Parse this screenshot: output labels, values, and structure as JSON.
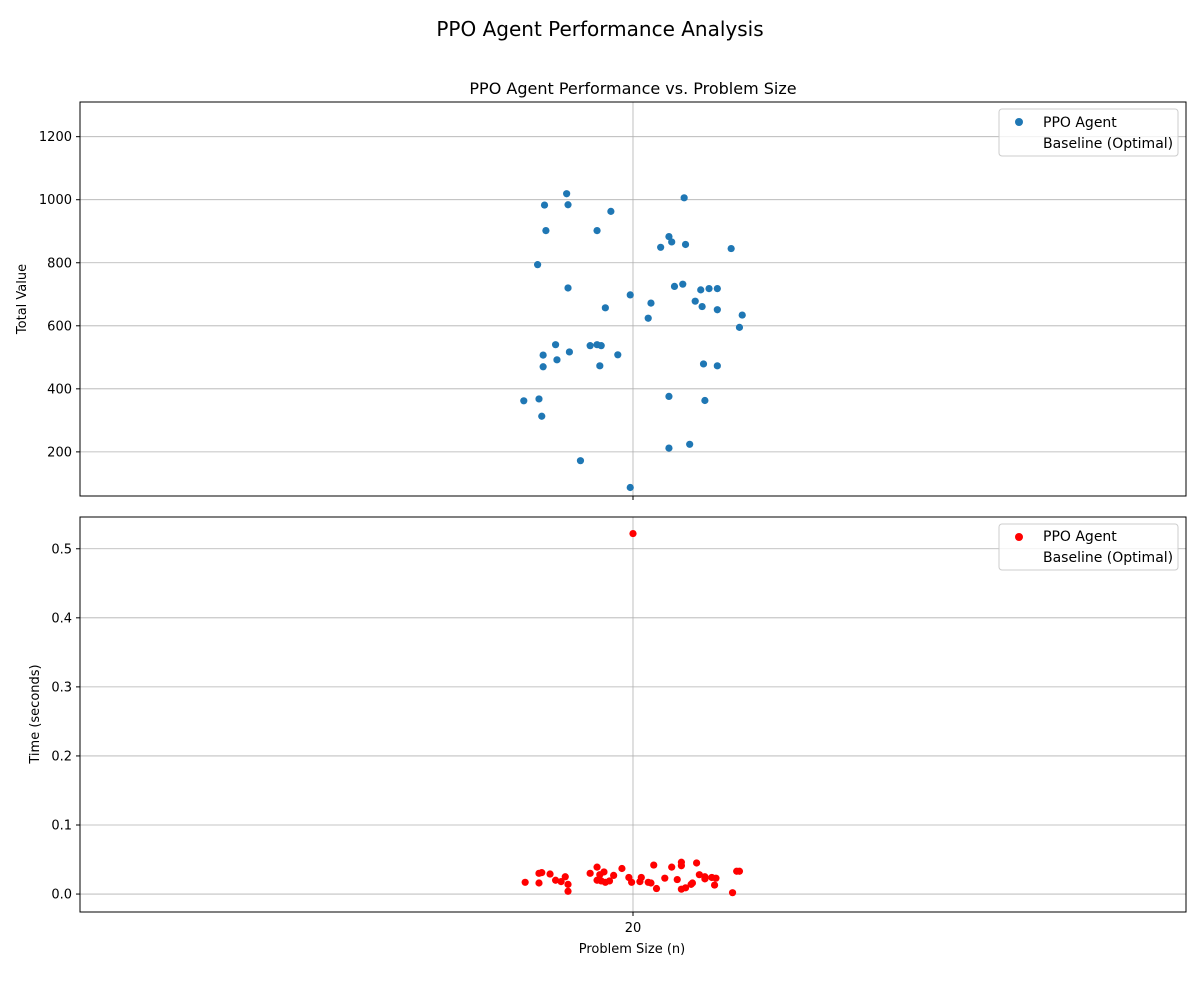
{
  "figure": {
    "suptitle": "PPO Agent Performance Analysis",
    "xlabel": "Problem Size (n)"
  },
  "chart_data": [
    {
      "type": "scatter",
      "title": "PPO Agent Performance vs. Problem Size",
      "xlabel": "",
      "ylabel": "Total Value",
      "xlim": [
        19.6,
        20.4
      ],
      "ylim": [
        60,
        1310
      ],
      "x_ticks": [
        20
      ],
      "y_ticks": [
        200,
        400,
        600,
        800,
        1000,
        1200
      ],
      "grid": true,
      "legend": {
        "placement": "top-right",
        "entries": [
          "PPO Agent",
          "Baseline (Optimal)"
        ]
      },
      "series": [
        {
          "name": "PPO Agent",
          "color": "#1f77b4",
          "points": [
            [
              19.921,
              362
            ],
            [
              19.931,
              794
            ],
            [
              19.932,
              368
            ],
            [
              19.934,
              313
            ],
            [
              19.935,
              507
            ],
            [
              19.935,
              470
            ],
            [
              19.936,
              983
            ],
            [
              19.937,
              902
            ],
            [
              19.944,
              540
            ],
            [
              19.945,
              492
            ],
            [
              19.952,
              1019
            ],
            [
              19.953,
              984
            ],
            [
              19.953,
              720
            ],
            [
              19.954,
              517
            ],
            [
              19.962,
              172
            ],
            [
              19.969,
              537
            ],
            [
              19.974,
              902
            ],
            [
              19.974,
              540
            ],
            [
              19.976,
              473
            ],
            [
              19.977,
              537
            ],
            [
              19.98,
              657
            ],
            [
              19.984,
              963
            ],
            [
              19.989,
              508
            ],
            [
              19.998,
              698
            ],
            [
              19.998,
              87
            ],
            [
              20.011,
              624
            ],
            [
              20.013,
              672
            ],
            [
              20.02,
              849
            ],
            [
              20.026,
              883
            ],
            [
              20.026,
              376
            ],
            [
              20.026,
              212
            ],
            [
              20.028,
              866
            ],
            [
              20.03,
              725
            ],
            [
              20.036,
              732
            ],
            [
              20.037,
              1006
            ],
            [
              20.038,
              858
            ],
            [
              20.041,
              224
            ],
            [
              20.045,
              678
            ],
            [
              20.049,
              714
            ],
            [
              20.05,
              661
            ],
            [
              20.051,
              479
            ],
            [
              20.052,
              363
            ],
            [
              20.055,
              718
            ],
            [
              20.061,
              718
            ],
            [
              20.061,
              651
            ],
            [
              20.061,
              473
            ],
            [
              20.071,
              845
            ],
            [
              20.077,
              595
            ],
            [
              20.079,
              634
            ]
          ]
        },
        {
          "name": "Baseline (Optimal)",
          "color": "#ff7f0e",
          "points": []
        }
      ]
    },
    {
      "type": "scatter",
      "title": "",
      "xlabel": "Problem Size (n)",
      "ylabel": "Time (seconds)",
      "xlim": [
        19.6,
        20.4
      ],
      "ylim": [
        -0.026,
        0.546
      ],
      "x_ticks": [
        20
      ],
      "y_ticks": [
        0.0,
        0.1,
        0.2,
        0.3,
        0.4,
        0.5
      ],
      "y_tick_format": "1",
      "grid": true,
      "legend": {
        "placement": "top-right",
        "entries": [
          "PPO Agent",
          "Baseline (Optimal)"
        ]
      },
      "series": [
        {
          "name": "PPO Agent",
          "color": "#ff0000",
          "points": [
            [
              20.0,
              0.522
            ],
            [
              19.922,
              0.017
            ],
            [
              19.932,
              0.03
            ],
            [
              19.932,
              0.016
            ],
            [
              19.934,
              0.031
            ],
            [
              19.94,
              0.029
            ],
            [
              19.944,
              0.02
            ],
            [
              19.948,
              0.018
            ],
            [
              19.951,
              0.025
            ],
            [
              19.953,
              0.014
            ],
            [
              19.953,
              0.004
            ],
            [
              19.969,
              0.03
            ],
            [
              19.974,
              0.039
            ],
            [
              19.974,
              0.02
            ],
            [
              19.976,
              0.028
            ],
            [
              19.977,
              0.019
            ],
            [
              19.979,
              0.032
            ],
            [
              19.98,
              0.017
            ],
            [
              19.983,
              0.019
            ],
            [
              19.986,
              0.027
            ],
            [
              19.992,
              0.037
            ],
            [
              19.997,
              0.024
            ],
            [
              19.999,
              0.017
            ],
            [
              20.005,
              0.018
            ],
            [
              20.006,
              0.024
            ],
            [
              20.011,
              0.017
            ],
            [
              20.013,
              0.016
            ],
            [
              20.015,
              0.042
            ],
            [
              20.017,
              0.008
            ],
            [
              20.023,
              0.023
            ],
            [
              20.028,
              0.039
            ],
            [
              20.032,
              0.021
            ],
            [
              20.035,
              0.046
            ],
            [
              20.035,
              0.041
            ],
            [
              20.035,
              0.007
            ],
            [
              20.038,
              0.009
            ],
            [
              20.042,
              0.014
            ],
            [
              20.043,
              0.016
            ],
            [
              20.046,
              0.045
            ],
            [
              20.048,
              0.028
            ],
            [
              20.052,
              0.025
            ],
            [
              20.052,
              0.022
            ],
            [
              20.057,
              0.024
            ],
            [
              20.059,
              0.013
            ],
            [
              20.06,
              0.023
            ],
            [
              20.072,
              0.002
            ],
            [
              20.075,
              0.033
            ],
            [
              20.077,
              0.033
            ]
          ]
        },
        {
          "name": "Baseline (Optimal)",
          "color": "#ff7f0e",
          "points": []
        }
      ]
    }
  ]
}
